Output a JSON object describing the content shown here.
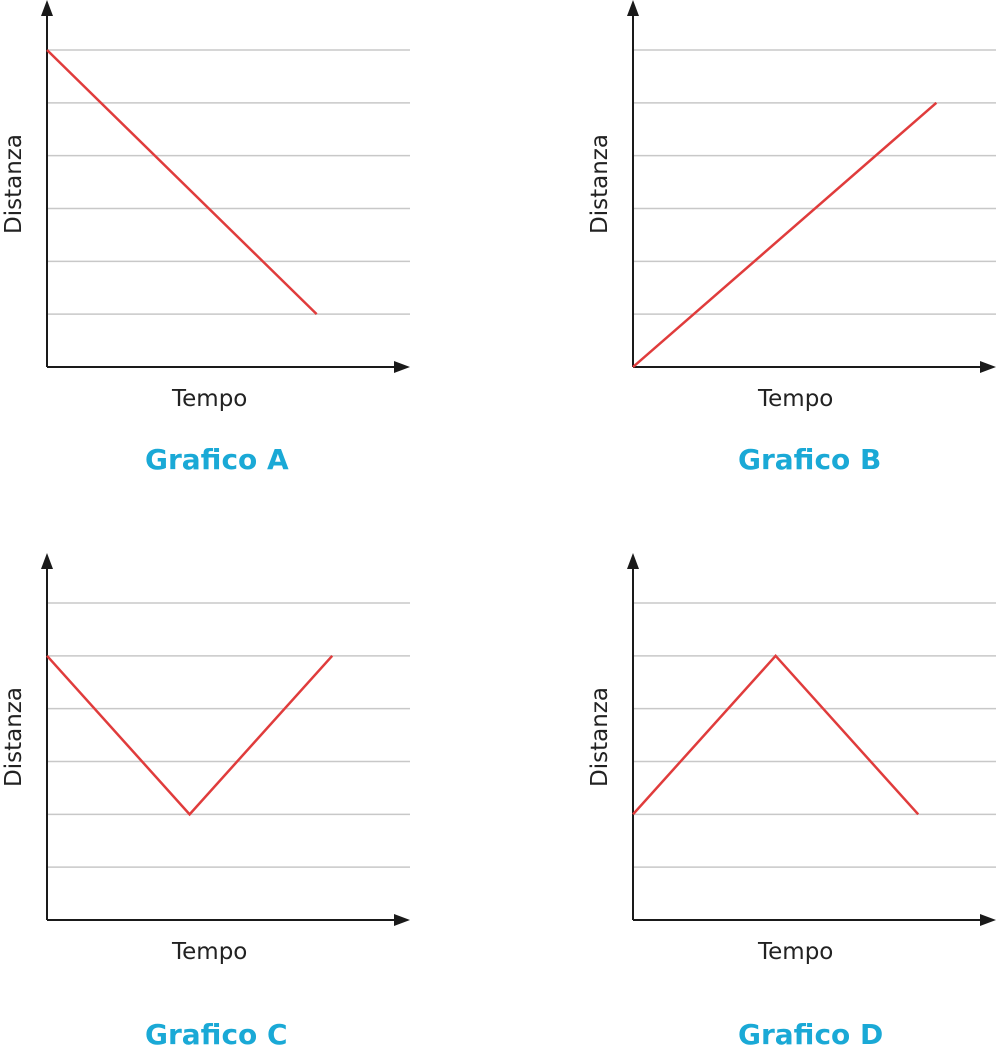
{
  "colors": {
    "line": "#e03c3c",
    "grid": "#c8c8c8",
    "axis": "#1a1a1a",
    "caption": "#1aa9d6"
  },
  "chart_data": [
    {
      "type": "line",
      "title": "Grafico A",
      "xlabel": "Tempo",
      "ylabel": "Distanza",
      "xlim": [
        0,
        7
      ],
      "ylim": [
        0,
        6
      ],
      "grid": true,
      "series": [
        {
          "x": [
            0,
            5.2
          ],
          "y": [
            6,
            1
          ]
        }
      ]
    },
    {
      "type": "line",
      "title": "Grafico B",
      "xlabel": "Tempo",
      "ylabel": "Distanza",
      "xlim": [
        0,
        7
      ],
      "ylim": [
        0,
        6
      ],
      "grid": true,
      "series": [
        {
          "x": [
            0,
            5.85
          ],
          "y": [
            0,
            5
          ]
        }
      ]
    },
    {
      "type": "line",
      "title": "Grafico C",
      "xlabel": "Tempo",
      "ylabel": "Distanza",
      "xlim": [
        0,
        7
      ],
      "ylim": [
        0,
        6
      ],
      "grid": true,
      "series": [
        {
          "x": [
            0,
            2.75,
            5.5
          ],
          "y": [
            5,
            2,
            5
          ]
        }
      ]
    },
    {
      "type": "line",
      "title": "Grafico D",
      "xlabel": "Tempo",
      "ylabel": "Distanza",
      "xlim": [
        0,
        7
      ],
      "ylim": [
        0,
        6
      ],
      "grid": true,
      "series": [
        {
          "x": [
            0,
            2.75,
            5.5
          ],
          "y": [
            2,
            5,
            2
          ]
        }
      ]
    }
  ]
}
